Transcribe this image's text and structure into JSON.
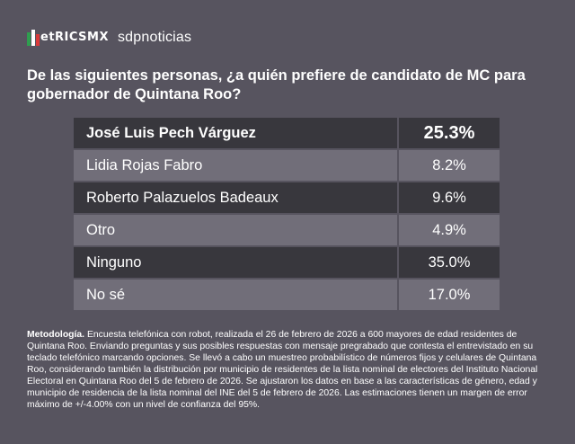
{
  "brand": {
    "logo_text": "etRICSMX",
    "partner": "sdpnoticias"
  },
  "title": "De las siguientes personas, ¿a quién prefiere de candidato de MC para gobernador de Quintana Roo?",
  "chart_data": {
    "type": "table",
    "rows": [
      {
        "name": "José Luis Pech Várguez",
        "value": "25.3%"
      },
      {
        "name": "Lidia Rojas Fabro",
        "value": "8.2%"
      },
      {
        "name": "Roberto Palazuelos Badeaux",
        "value": "9.6%"
      },
      {
        "name": "Otro",
        "value": "4.9%"
      },
      {
        "name": "Ninguno",
        "value": "35.0%"
      },
      {
        "name": "No sé",
        "value": "17.0%"
      }
    ]
  },
  "methodology": {
    "label": "Metodología.",
    "text": " Encuesta telefónica con robot, realizada el 26 de febrero de 2026 a 600 mayores de edad residentes de Quintana Roo. Enviando preguntas y sus posibles respuestas con mensaje pregrabado que contesta el entrevistado en su teclado telefónico marcando opciones. Se llevó a cabo un muestreo probabilístico de números fijos y celulares de Quintana Roo, considerando también la distribución por municipio de residentes de la lista nominal de electores del Instituto Nacional Electoral en Quintana Roo del 5 de febrero de 2026. Se ajustaron los datos en base a las características de género, edad y municipio de residencia de la lista nominal del INE del 5 de febrero de 2026. Las estimaciones tienen un margen de error máximo de +/-4.00% con un nivel de confianza del 95%."
  },
  "colors": {
    "background": "#57545f",
    "row_dark": "#38373d",
    "row_light": "#716e79"
  }
}
